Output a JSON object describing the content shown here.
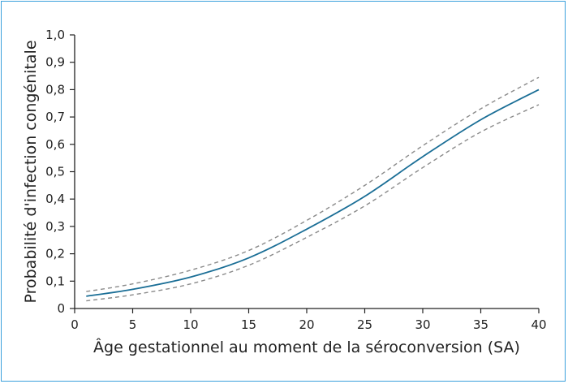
{
  "chart_data": {
    "type": "line",
    "title": "",
    "xlabel": "Âge gestationnel au moment de la séroconversion (SA)",
    "ylabel": "Probabilité d'infection congénitale",
    "xlim": [
      0,
      40
    ],
    "ylim": [
      0,
      1.0
    ],
    "xticks": [
      "0",
      "5",
      "10",
      "15",
      "20",
      "25",
      "30",
      "35",
      "40"
    ],
    "yticks": [
      "0",
      "0,1",
      "0,2",
      "0,3",
      "0,4",
      "0,5",
      "0,6",
      "0,7",
      "0,8",
      "0,9",
      "1,0"
    ],
    "grid": false,
    "legend": "none",
    "colors": {
      "main": "#1a6e96",
      "ci": "#8a8a8a",
      "axis": "#222222",
      "frame": "#3aa0dc"
    },
    "series": [
      {
        "role": "estimate",
        "style": "solid",
        "x": [
          1,
          5,
          10,
          15,
          20,
          25,
          30,
          35,
          40
        ],
        "y": [
          0.045,
          0.07,
          0.115,
          0.185,
          0.29,
          0.41,
          0.555,
          0.69,
          0.8
        ]
      },
      {
        "role": "upper-ci",
        "style": "dashed",
        "x": [
          1,
          5,
          10,
          15,
          20,
          25,
          30,
          35,
          40
        ],
        "y": [
          0.062,
          0.09,
          0.14,
          0.212,
          0.322,
          0.45,
          0.595,
          0.73,
          0.845
        ]
      },
      {
        "role": "lower-ci",
        "style": "dashed",
        "x": [
          1,
          5,
          10,
          15,
          20,
          25,
          30,
          35,
          40
        ],
        "y": [
          0.028,
          0.05,
          0.09,
          0.158,
          0.26,
          0.375,
          0.515,
          0.645,
          0.745
        ]
      }
    ]
  }
}
